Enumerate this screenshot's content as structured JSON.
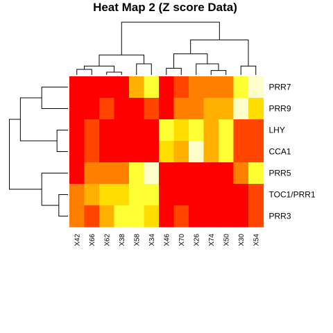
{
  "chart_data": {
    "type": "heatmap",
    "title": "Heat Map 2 (Z score Data)",
    "columns": [
      "X42",
      "X66",
      "X62",
      "X38",
      "X58",
      "X34",
      "X46",
      "X70",
      "X26",
      "X74",
      "X50",
      "X30",
      "X54"
    ],
    "rows": [
      "PRR7",
      "PRR9",
      "LHY",
      "CCA1",
      "PRR5",
      "TOC1/PRR1",
      "PRR3"
    ],
    "color_scale": [
      "#ff0000",
      "#ff4500",
      "#ff7f00",
      "#ffb000",
      "#ffdd00",
      "#ffff33",
      "#ffffcc"
    ],
    "values": [
      [
        0,
        0,
        0,
        0,
        3,
        5,
        0,
        1,
        2,
        2,
        2,
        5,
        6
      ],
      [
        0,
        0,
        1,
        0,
        0,
        1,
        0,
        2,
        2,
        3,
        3,
        6,
        4
      ],
      [
        0,
        1,
        0,
        0,
        0,
        0,
        5,
        4,
        5,
        3,
        5,
        1,
        1
      ],
      [
        0,
        1,
        0,
        0,
        0,
        0,
        4,
        3,
        6,
        3,
        5,
        1,
        1
      ],
      [
        0,
        2,
        2,
        2,
        5,
        6,
        0,
        0,
        0,
        0,
        0,
        2,
        5
      ],
      [
        2,
        3,
        4,
        4,
        5,
        5,
        0,
        0,
        0,
        0,
        0,
        0,
        1
      ],
      [
        2,
        1,
        3,
        5,
        5,
        4,
        0,
        1,
        0,
        0,
        0,
        0,
        1
      ]
    ],
    "legend": "none",
    "grid": false
  }
}
